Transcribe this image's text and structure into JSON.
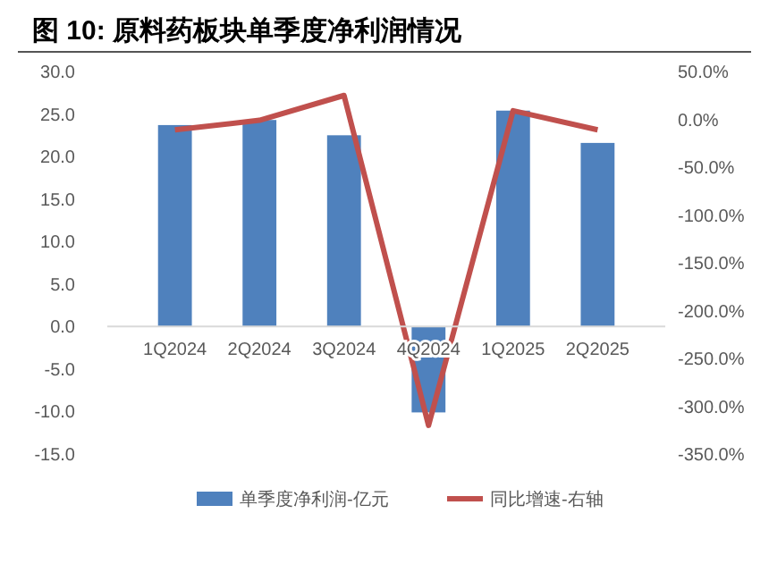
{
  "chart_data": {
    "type": "bar",
    "title": "图 10: 原料药板块单季度净利润情况",
    "categories": [
      "1Q2024",
      "2Q2024",
      "3Q2024",
      "4Q2024",
      "1Q2025",
      "2Q2025"
    ],
    "series": [
      {
        "name": "单季度净利润-亿元",
        "color": "#4f81bd",
        "values": [
          23.7,
          24.3,
          22.5,
          -10.1,
          25.4,
          21.6
        ]
      },
      {
        "name": "同比增速-右轴",
        "type": "line",
        "axis": "y2",
        "color": "#c0504d",
        "values": [
          -11,
          -1,
          25,
          -320,
          9,
          -11
        ]
      }
    ],
    "ylim": [
      -15,
      30
    ],
    "yticks": [
      {
        "value": -15,
        "label": "-15.0"
      },
      {
        "value": -10,
        "label": "-10.0"
      },
      {
        "value": -5,
        "label": "-5.0"
      },
      {
        "value": 0,
        "label": "0.0"
      },
      {
        "value": 5,
        "label": "5.0"
      },
      {
        "value": 10,
        "label": "10.0"
      },
      {
        "value": 15,
        "label": "15.0"
      },
      {
        "value": 20,
        "label": "20.0"
      },
      {
        "value": 25,
        "label": "25.0"
      },
      {
        "value": 30,
        "label": "30.0"
      }
    ],
    "y2lim": [
      -350,
      50
    ],
    "y2ticks": [
      {
        "value": -350,
        "label": "-350.0%"
      },
      {
        "value": -300,
        "label": "-300.0%"
      },
      {
        "value": -250,
        "label": "-250.0%"
      },
      {
        "value": -200,
        "label": "-200.0%"
      },
      {
        "value": -150,
        "label": "-150.0%"
      },
      {
        "value": -100,
        "label": "-100.0%"
      },
      {
        "value": -50,
        "label": "-50.0%"
      },
      {
        "value": 0,
        "label": "0.0%"
      },
      {
        "value": 50,
        "label": "50.0%"
      }
    ],
    "grid": false,
    "legend": "bottom",
    "marker": "none"
  }
}
